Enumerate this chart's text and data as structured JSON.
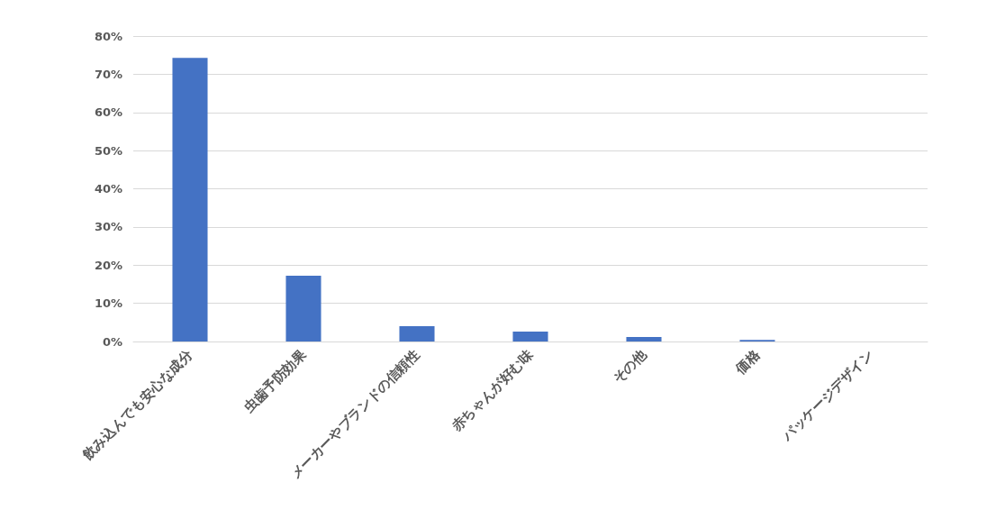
{
  "chart_data": {
    "type": "bar",
    "categories": [
      "飲み込んでも安心な成分",
      "虫歯予防効果",
      "メーカーやブランドの信頼性",
      "赤ちゃんが好む味",
      "その他",
      "価格",
      "パッケージデザイン"
    ],
    "values": [
      74.3,
      17.2,
      4.0,
      2.6,
      1.2,
      0.4,
      0
    ],
    "color": "#4472c4",
    "ylim": [
      0,
      80
    ],
    "yticks": [
      {
        "value": 0,
        "label": "0%"
      },
      {
        "value": 10,
        "label": "10%"
      },
      {
        "value": 20,
        "label": "20%"
      },
      {
        "value": 30,
        "label": "30%"
      },
      {
        "value": 40,
        "label": "40%"
      },
      {
        "value": 50,
        "label": "50%"
      },
      {
        "value": 60,
        "label": "60%"
      },
      {
        "value": 70,
        "label": "70%"
      },
      {
        "value": 80,
        "label": "80%"
      }
    ],
    "grid": true
  }
}
